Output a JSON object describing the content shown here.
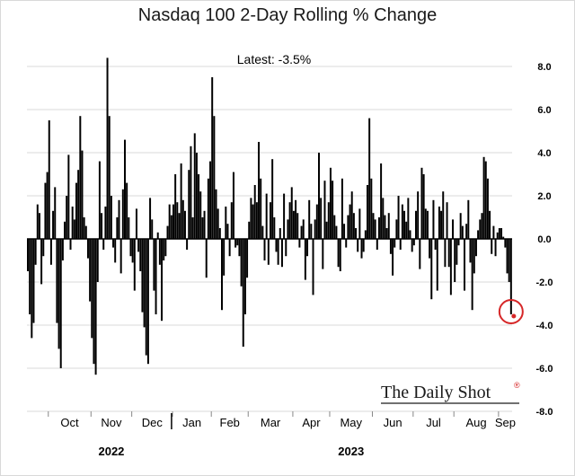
{
  "title": "Nasdaq 100 2-Day Rolling % Change",
  "annotation": "Latest:  -3.5%",
  "brand": "The Daily Shot",
  "brand_mark": "®",
  "colors": {
    "bar": "#000000",
    "grid": "#d9d9d9",
    "highlight": "#d62728"
  },
  "chart_data": {
    "type": "bar",
    "title": "Nasdaq 100 2-Day Rolling % Change",
    "xlabel": "",
    "ylabel": "",
    "ylim": [
      -8,
      9
    ],
    "yticks": [
      8.0,
      6.0,
      4.0,
      2.0,
      0.0,
      -2.0,
      -4.0,
      -6.0,
      -8.0
    ],
    "ytick_labels": [
      "8.0",
      "6.0",
      "4.0",
      "2.0",
      "0.0",
      "-2.0",
      "-4.0",
      "-6.0",
      "-8.0"
    ],
    "grid": true,
    "month_labels": [
      "Oct",
      "Nov",
      "Dec",
      "Jan",
      "Feb",
      "Mar",
      "Apr",
      "May",
      "Jun",
      "Jul",
      "Aug",
      "Sep"
    ],
    "month_start_index": [
      11,
      33,
      54,
      75,
      95,
      114,
      137,
      156,
      178,
      199,
      220,
      243
    ],
    "year_labels": [
      {
        "label": "2022",
        "month_index": 1
      },
      {
        "label": "2023",
        "month_index": 7
      }
    ],
    "latest_value": -3.5,
    "values": [
      -1.5,
      -3.5,
      -4.6,
      -3.9,
      -1.2,
      1.6,
      1.2,
      -2.1,
      -0.8,
      2.6,
      3.1,
      5.5,
      -1.2,
      1.3,
      2.4,
      -3.9,
      -5.1,
      -6.0,
      -1.0,
      0.8,
      2.0,
      3.9,
      -0.5,
      1.5,
      0.9,
      2.6,
      3.2,
      5.7,
      4.1,
      1.0,
      0.6,
      -0.9,
      -2.9,
      -4.6,
      -5.8,
      -6.3,
      -2.0,
      3.6,
      1.2,
      -0.5,
      1.5,
      8.4,
      5.7,
      2.0,
      -0.4,
      -1.1,
      1.0,
      1.8,
      -1.6,
      2.3,
      4.6,
      2.6,
      1.0,
      -0.8,
      -1.1,
      -2.4,
      1.4,
      -0.6,
      -1.5,
      -3.4,
      -4.1,
      -5.4,
      -5.8,
      1.9,
      0.9,
      -2.4,
      -3.5,
      0.3,
      -1.2,
      -3.8,
      -1.0,
      -0.8,
      0.6,
      1.6,
      1.1,
      1.6,
      3.0,
      1.7,
      1.2,
      3.5,
      1.8,
      1.3,
      -0.5,
      3.2,
      4.3,
      1.0,
      4.9,
      4.0,
      3.0,
      2.2,
      1.0,
      1.3,
      -1.8,
      2.8,
      3.6,
      7.5,
      5.7,
      2.3,
      1.4,
      0.5,
      -3.3,
      -1.7,
      1.5,
      0.7,
      -0.8,
      1.7,
      3.1,
      -0.4,
      -0.3,
      -0.8,
      -2.2,
      -5.0,
      -3.5,
      -1.8,
      0.8,
      1.9,
      1.6,
      2.5,
      1.7,
      4.5,
      2.8,
      0.6,
      -1.0,
      2.1,
      -1.2,
      1.7,
      3.7,
      1.0,
      -0.6,
      -1.2,
      0.5,
      -1.3,
      2.1,
      -0.8,
      0.9,
      1.7,
      2.4,
      1.3,
      1.8,
      1.2,
      -0.4,
      0.6,
      0.9,
      -1.9,
      -0.8,
      1.8,
      0.7,
      -2.6,
      0.9,
      1.6,
      4.0,
      1.9,
      -1.4,
      2.7,
      0.8,
      1.7,
      3.3,
      2.7,
      1.1,
      0.6,
      -1.3,
      -1.5,
      2.8,
      0.7,
      -0.4,
      1.1,
      1.6,
      2.2,
      1.2,
      0.5,
      -0.6,
      1.4,
      -0.9,
      -0.6,
      0.4,
      2.5,
      5.6,
      2.8,
      1.2,
      0.9,
      -0.5,
      1.0,
      3.5,
      1.9,
      1.1,
      0.5,
      1.2,
      -0.7,
      -1.7,
      -0.4,
      0.9,
      2.0,
      -0.5,
      1.6,
      1.3,
      0.8,
      1.9,
      0.4,
      -0.6,
      -0.3,
      1.3,
      2.2,
      -1.4,
      3.3,
      3.0,
      1.4,
      1.3,
      -0.9,
      -2.8,
      1.8,
      -0.5,
      -2.4,
      1.5,
      1.3,
      2.2,
      -1.3,
      1.7,
      -1.3,
      -2.6,
      0.9,
      -2.0,
      -1.2,
      -0.3,
      1.2,
      0.6,
      -2.4,
      0.7,
      1.8,
      -1.1,
      -3.3,
      -1.6,
      -0.8,
      0.4,
      0.9,
      1.2,
      3.8,
      3.6,
      2.8,
      1.3,
      -0.7,
      0.6,
      -0.8,
      0.3,
      0.5,
      0.5,
      0.1,
      -0.4,
      -1.6,
      -2.0,
      -3.5
    ]
  }
}
